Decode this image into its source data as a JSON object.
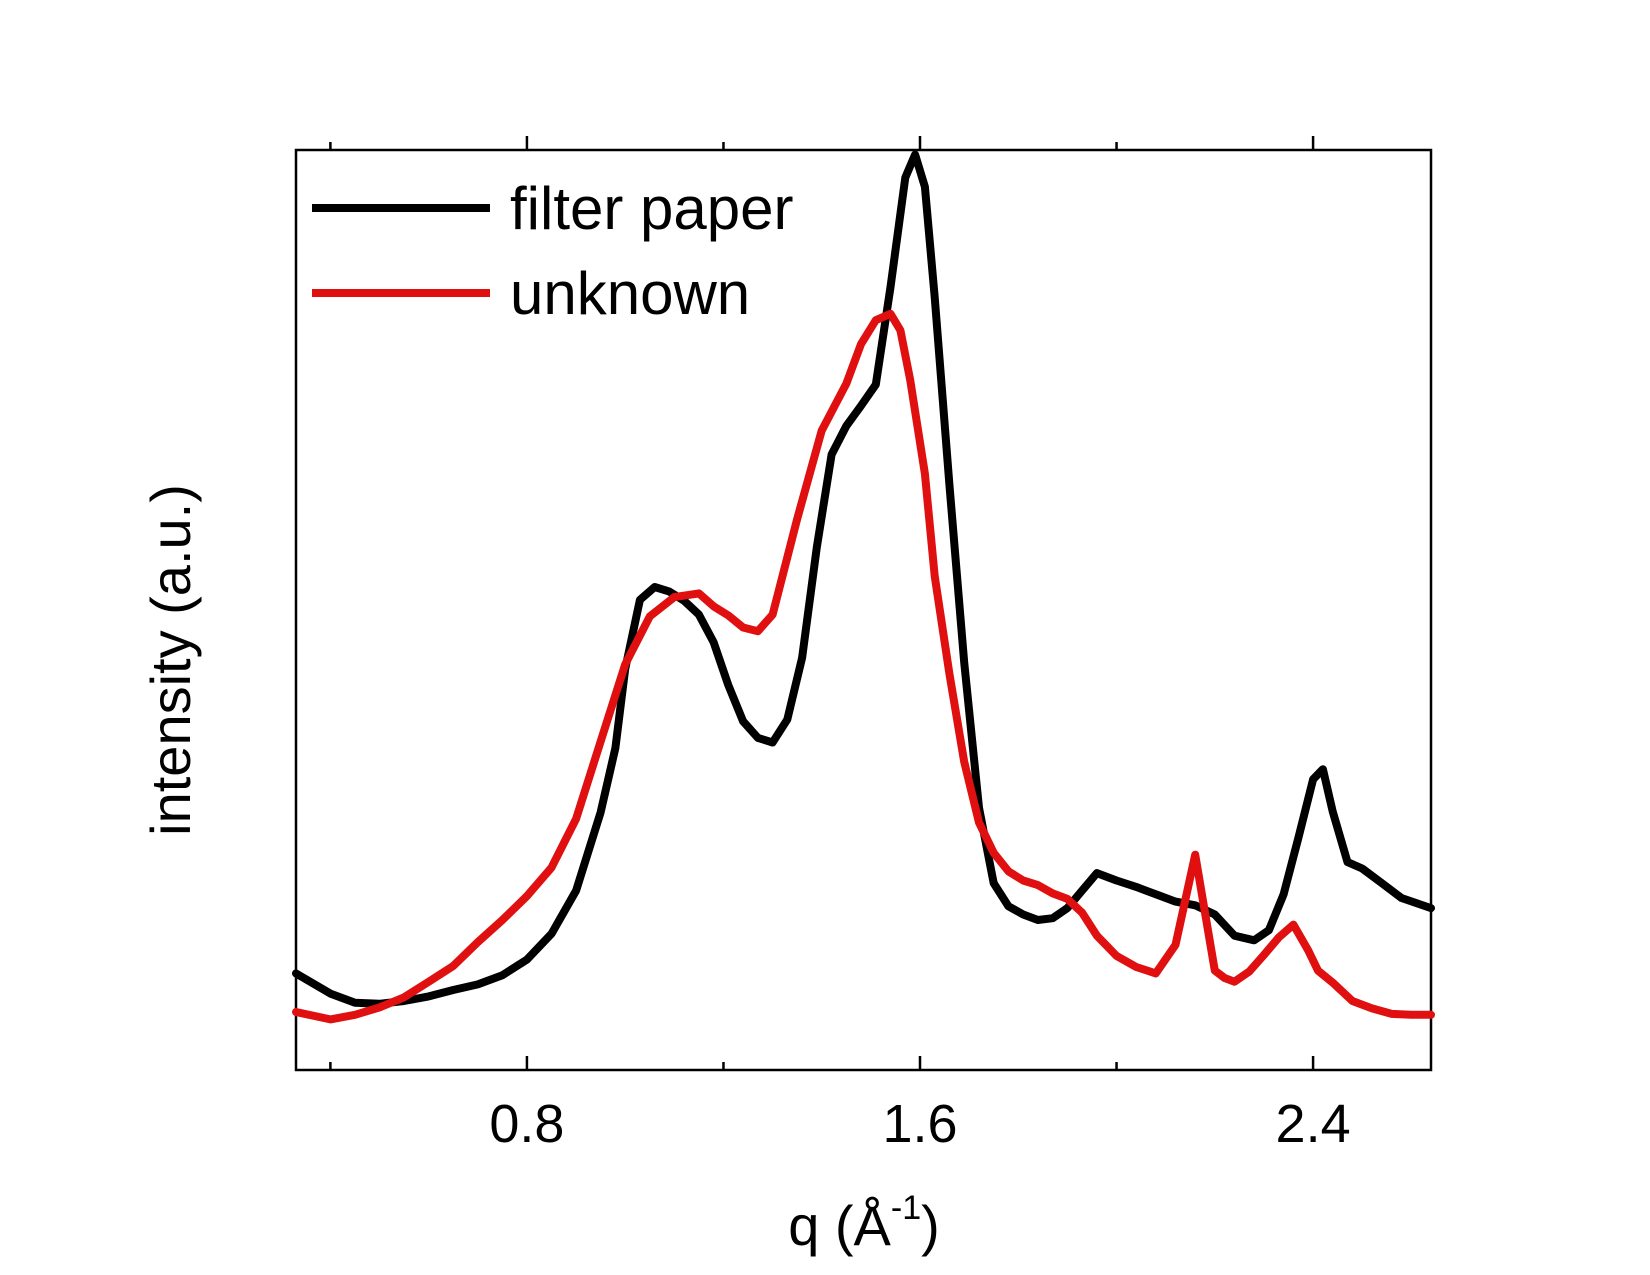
{
  "chart_data": {
    "type": "line",
    "title": "",
    "xlabel": "q (Å",
    "xlabel_sup": "-1",
    "xlabel_close": ")",
    "ylabel": "intensity (a.u.)",
    "xlim": [
      0.33,
      2.64
    ],
    "ylim": [
      0,
      100
    ],
    "x_ticks": [
      0.8,
      1.6,
      2.4
    ],
    "x_tick_labels": [
      "0.8",
      "1.6",
      "2.4"
    ],
    "x_minor_ticks": [
      0.4,
      1.2,
      2.0
    ],
    "y_ticks_shown": false,
    "grid": false,
    "legend_position": "top-left",
    "series": [
      {
        "name": "filter paper",
        "color": "#000000",
        "x": [
          0.33,
          0.4,
          0.45,
          0.5,
          0.55,
          0.6,
          0.65,
          0.7,
          0.75,
          0.8,
          0.85,
          0.9,
          0.95,
          0.98,
          1.0,
          1.03,
          1.06,
          1.09,
          1.12,
          1.15,
          1.18,
          1.21,
          1.24,
          1.27,
          1.3,
          1.33,
          1.36,
          1.39,
          1.42,
          1.45,
          1.48,
          1.51,
          1.54,
          1.57,
          1.59,
          1.61,
          1.63,
          1.66,
          1.69,
          1.72,
          1.75,
          1.78,
          1.81,
          1.84,
          1.87,
          1.9,
          1.93,
          1.96,
          2.0,
          2.04,
          2.08,
          2.12,
          2.16,
          2.2,
          2.24,
          2.28,
          2.31,
          2.34,
          2.37,
          2.4,
          2.42,
          2.44,
          2.47,
          2.5,
          2.54,
          2.58,
          2.64
        ],
        "y": [
          10.5,
          8.3,
          7.3,
          7.2,
          7.5,
          8.0,
          8.7,
          9.3,
          10.3,
          12.0,
          14.8,
          19.5,
          28.0,
          35.0,
          43.6,
          51.1,
          52.5,
          52.0,
          51.0,
          49.5,
          46.5,
          41.8,
          37.9,
          36.1,
          35.6,
          38.1,
          44.8,
          56.8,
          66.9,
          70.0,
          72.2,
          74.5,
          85.1,
          97.0,
          99.5,
          96.0,
          84.0,
          63.5,
          44.3,
          28.5,
          20.3,
          17.8,
          16.9,
          16.3,
          16.5,
          17.6,
          19.5,
          21.4,
          20.6,
          19.9,
          19.1,
          18.3,
          17.9,
          16.9,
          14.6,
          14.1,
          15.2,
          19.1,
          25.2,
          31.6,
          32.7,
          28.1,
          22.6,
          21.9,
          20.3,
          18.7,
          17.6
        ]
      },
      {
        "name": "unknown",
        "color": "#e01010",
        "x": [
          0.33,
          0.4,
          0.45,
          0.5,
          0.55,
          0.6,
          0.65,
          0.7,
          0.75,
          0.8,
          0.85,
          0.9,
          0.95,
          1.0,
          1.05,
          1.1,
          1.15,
          1.18,
          1.21,
          1.24,
          1.27,
          1.3,
          1.35,
          1.4,
          1.45,
          1.48,
          1.51,
          1.54,
          1.56,
          1.58,
          1.61,
          1.63,
          1.66,
          1.69,
          1.72,
          1.75,
          1.78,
          1.81,
          1.84,
          1.87,
          1.9,
          1.93,
          1.96,
          2.0,
          2.04,
          2.08,
          2.12,
          2.16,
          2.18,
          2.2,
          2.22,
          2.24,
          2.27,
          2.3,
          2.33,
          2.36,
          2.39,
          2.41,
          2.44,
          2.48,
          2.52,
          2.56,
          2.6,
          2.64
        ],
        "y": [
          6.3,
          5.5,
          6.0,
          6.8,
          7.9,
          9.6,
          11.3,
          13.9,
          16.3,
          18.9,
          22.0,
          27.3,
          35.7,
          44.1,
          49.3,
          51.4,
          51.8,
          50.4,
          49.4,
          48.1,
          47.7,
          49.5,
          59.9,
          69.5,
          74.6,
          78.9,
          81.5,
          82.2,
          80.4,
          75.0,
          64.8,
          53.7,
          43.0,
          33.5,
          26.9,
          23.6,
          21.6,
          20.6,
          20.1,
          19.2,
          18.6,
          17.1,
          14.6,
          12.4,
          11.2,
          10.5,
          13.6,
          23.4,
          17.1,
          10.8,
          10.0,
          9.6,
          10.7,
          12.5,
          14.4,
          15.8,
          13.0,
          10.8,
          9.5,
          7.5,
          6.7,
          6.1,
          6.0,
          6.0
        ]
      }
    ]
  }
}
